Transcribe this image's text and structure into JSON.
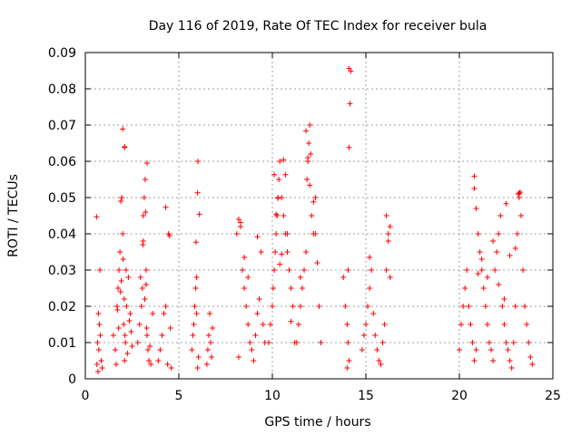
{
  "chart_data": {
    "type": "scatter",
    "title": "Day 116 of 2019, Rate Of TEC Index for receiver bula",
    "xlabel": "GPS time / hours",
    "ylabel": "ROTI / TECUs",
    "xlim": [
      0,
      25
    ],
    "ylim": [
      0,
      0.09
    ],
    "xticks": [
      "0",
      "5",
      "10",
      "15",
      "20",
      "25"
    ],
    "yticks": [
      "0",
      "0.01",
      "0.02",
      "0.03",
      "0.04",
      "0.05",
      "0.06",
      "0.07",
      "0.08",
      "0.09"
    ],
    "grid": true,
    "marker": "+",
    "color": "#ff0000",
    "series": [
      {
        "x": [
          0.6,
          0.68,
          0.72,
          0.75,
          0.8,
          0.85,
          0.62,
          0.7,
          0.78,
          0.9,
          0.65,
          1.5,
          1.6,
          1.7,
          1.75,
          1.8,
          1.85,
          1.9,
          1.95,
          2.0,
          2.05,
          2.1,
          2.15,
          2.2,
          2.3,
          2.4,
          2.5,
          1.65,
          1.78,
          1.88,
          2.02,
          2.08,
          2.12,
          2.25,
          2.35,
          1.72,
          1.92,
          2.18,
          2.45,
          2.0,
          2.1,
          2.1,
          2.8,
          2.9,
          3.0,
          3.05,
          3.1,
          3.15,
          3.2,
          3.25,
          3.3,
          3.35,
          3.4,
          3.5,
          3.6,
          2.95,
          3.08,
          3.18,
          3.28,
          3.45,
          3.22,
          3.3,
          3.1,
          3.25,
          3.9,
          4.0,
          4.1,
          4.2,
          4.3,
          4.4,
          4.45,
          4.5,
          4.6,
          4.3,
          4.55,
          5.7,
          5.8,
          5.85,
          5.9,
          5.95,
          6.0,
          6.05,
          6.1,
          5.75,
          5.92,
          6.02,
          5.95,
          6.0,
          6.5,
          6.55,
          6.6,
          6.65,
          6.7,
          6.75,
          6.8,
          8.1,
          8.2,
          8.3,
          8.4,
          8.5,
          8.6,
          8.7,
          8.8,
          8.9,
          9.0,
          9.1,
          9.2,
          9.3,
          9.4,
          9.5,
          9.6,
          8.3,
          8.5,
          8.7,
          9.2,
          8.2,
          9.8,
          9.9,
          10.0,
          10.05,
          10.1,
          10.15,
          10.2,
          10.25,
          10.3,
          10.35,
          10.4,
          10.5,
          10.6,
          10.7,
          10.8,
          10.9,
          11.0,
          11.1,
          11.2,
          10.1,
          10.2,
          10.3,
          10.6,
          10.7,
          10.8,
          10.5,
          10.4,
          11.0,
          11.3,
          11.4,
          11.5,
          11.6,
          11.7,
          11.8,
          11.85,
          11.9,
          11.95,
          12.0,
          12.05,
          12.1,
          12.2,
          12.3,
          12.4,
          12.5,
          12.6,
          11.8,
          11.9,
          12.0,
          12.2,
          12.3,
          11.5,
          13.8,
          13.9,
          14.0,
          14.05,
          14.1,
          14.15,
          14.2,
          14.1,
          14.1,
          14.05,
          14.0,
          14.8,
          14.9,
          15.0,
          15.1,
          15.2,
          15.3,
          15.4,
          15.5,
          15.6,
          15.7,
          15.8,
          15.9,
          16.0,
          16.1,
          16.2,
          16.3,
          16.2,
          16.3,
          16.1,
          15.2,
          20.0,
          20.1,
          20.2,
          20.3,
          20.4,
          20.5,
          20.6,
          20.7,
          20.8,
          20.9,
          21.0,
          21.1,
          21.2,
          21.3,
          21.4,
          21.5,
          21.6,
          21.7,
          21.8,
          21.9,
          22.0,
          22.1,
          22.2,
          22.3,
          22.4,
          22.5,
          22.6,
          22.7,
          22.8,
          22.9,
          23.0,
          23.1,
          23.2,
          23.3,
          23.4,
          23.5,
          23.6,
          23.7,
          23.8,
          23.9,
          20.8,
          20.8,
          20.9,
          21.2,
          21.5,
          21.8,
          22.1,
          22.4,
          22.7,
          23.0,
          23.2,
          23.15,
          23.25,
          22.5,
          21.0
        ],
        "y": [
          0.0447,
          0.002,
          0.008,
          0.015,
          0.012,
          0.005,
          0.004,
          0.018,
          0.03,
          0.003,
          0.01,
          0.012,
          0.008,
          0.02,
          0.025,
          0.03,
          0.035,
          0.049,
          0.05,
          0.04,
          0.015,
          0.005,
          0.01,
          0.02,
          0.028,
          0.018,
          0.009,
          0.004,
          0.014,
          0.024,
          0.033,
          0.022,
          0.012,
          0.007,
          0.016,
          0.019,
          0.027,
          0.03,
          0.013,
          0.0689,
          0.0638,
          0.064,
          0.01,
          0.015,
          0.02,
          0.025,
          0.045,
          0.05,
          0.055,
          0.03,
          0.012,
          0.008,
          0.005,
          0.004,
          0.018,
          0.028,
          0.037,
          0.022,
          0.014,
          0.009,
          0.046,
          0.0595,
          0.038,
          0.026,
          0.005,
          0.008,
          0.012,
          0.018,
          0.02,
          0.004,
          0.04,
          0.0395,
          0.003,
          0.0473,
          0.014,
          0.008,
          0.015,
          0.02,
          0.025,
          0.028,
          0.0513,
          0.006,
          0.0454,
          0.012,
          0.0377,
          0.06,
          0.018,
          0.003,
          0.004,
          0.008,
          0.012,
          0.018,
          0.01,
          0.006,
          0.014,
          0.04,
          0.044,
          0.042,
          0.03,
          0.025,
          0.02,
          0.015,
          0.01,
          0.008,
          0.005,
          0.012,
          0.018,
          0.022,
          0.035,
          0.015,
          0.01,
          0.0431,
          0.0335,
          0.028,
          0.0392,
          0.006,
          0.01,
          0.015,
          0.02,
          0.025,
          0.03,
          0.035,
          0.04,
          0.045,
          0.05,
          0.055,
          0.06,
          0.05,
          0.045,
          0.04,
          0.035,
          0.03,
          0.025,
          0.02,
          0.01,
          0.0563,
          0.0454,
          0.0498,
          0.0604,
          0.0563,
          0.04,
          0.0344,
          0.0316,
          0.0158,
          0.01,
          0.015,
          0.02,
          0.025,
          0.03,
          0.035,
          0.055,
          0.06,
          0.065,
          0.07,
          0.062,
          0.045,
          0.04,
          0.05,
          0.032,
          0.02,
          0.01,
          0.0684,
          0.061,
          0.0534,
          0.0488,
          0.04,
          0.028,
          0.028,
          0.02,
          0.015,
          0.01,
          0.005,
          0.0759,
          0.0849,
          0.0856,
          0.0638,
          0.03,
          0.003,
          0.008,
          0.012,
          0.015,
          0.02,
          0.025,
          0.03,
          0.018,
          0.012,
          0.008,
          0.005,
          0.004,
          0.01,
          0.015,
          0.045,
          0.04,
          0.028,
          0.038,
          0.042,
          0.03,
          0.0335,
          0.008,
          0.015,
          0.02,
          0.025,
          0.03,
          0.02,
          0.015,
          0.01,
          0.005,
          0.008,
          0.04,
          0.035,
          0.03,
          0.025,
          0.02,
          0.015,
          0.01,
          0.008,
          0.005,
          0.03,
          0.035,
          0.04,
          0.045,
          0.02,
          0.015,
          0.01,
          0.008,
          0.005,
          0.003,
          0.01,
          0.02,
          0.04,
          0.05,
          0.045,
          0.03,
          0.02,
          0.015,
          0.01,
          0.006,
          0.004,
          0.0559,
          0.0525,
          0.047,
          0.033,
          0.028,
          0.038,
          0.026,
          0.022,
          0.034,
          0.036,
          0.0512,
          0.051,
          0.0515,
          0.0483,
          0.029
        ]
      }
    ]
  }
}
